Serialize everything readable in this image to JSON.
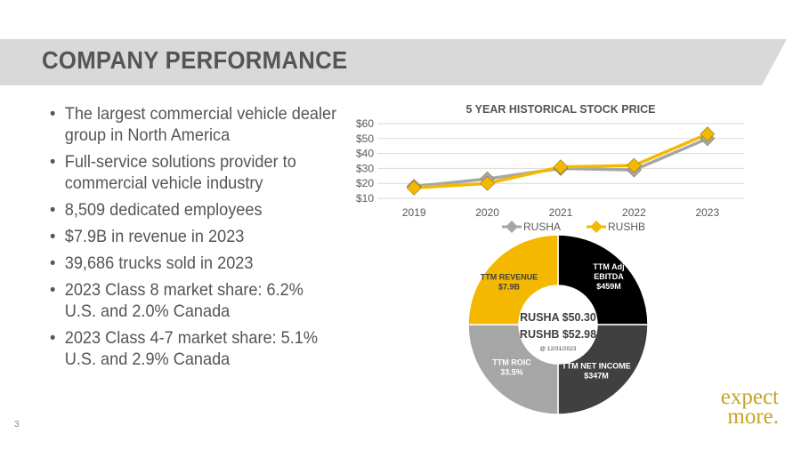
{
  "header": {
    "title": "COMPANY PERFORMANCE"
  },
  "bullets": [
    "The largest commercial vehicle dealer group in North America",
    "Full-service solutions provider to commercial vehicle industry",
    "8,509 dedicated employees",
    "$7.9B in revenue in 2023",
    "39,686 trucks sold in 2023",
    "2023 Class 8 market share: 6.2% U.S. and 2.0% Canada",
    "2023 Class 4-7 market share: 5.1% U.S. and 2.9% Canada"
  ],
  "page_number": "3",
  "logo": {
    "line1": "expect",
    "line2": "more."
  },
  "colors": {
    "gold": "#f5b800",
    "gray": "#a6a6a6",
    "black": "#000000",
    "dark": "#404040",
    "banner": "#d9d9d9",
    "logo": "#c9a227"
  },
  "chart_data": [
    {
      "type": "line",
      "title": "5 YEAR HISTORICAL STOCK PRICE",
      "categories": [
        "2019",
        "2020",
        "2021",
        "2022",
        "2023"
      ],
      "y_ticks": [
        "$10",
        "$20",
        "$30",
        "$40",
        "$50",
        "$60"
      ],
      "ylim": [
        10,
        60
      ],
      "series": [
        {
          "name": "RUSHA",
          "values": [
            18,
            23,
            30,
            29,
            50
          ],
          "color": "#a6a6a6",
          "marker": "diamond"
        },
        {
          "name": "RUSHB",
          "values": [
            17,
            20,
            31,
            32,
            53
          ],
          "color": "#f5b800",
          "marker": "diamond"
        }
      ],
      "legend": "bottom",
      "grid": true
    },
    {
      "type": "pie",
      "variant": "donut",
      "slices": [
        {
          "label_lines": [
            "TTM Adj",
            "EBITDA",
            "$459M"
          ],
          "value": 25,
          "color": "#000000",
          "text_color": "#ffffff"
        },
        {
          "label_lines": [
            "TTM NET INCOME",
            "$347M"
          ],
          "value": 25,
          "color": "#404040",
          "text_color": "#ffffff"
        },
        {
          "label_lines": [
            "TTM ROIC",
            "33.5%"
          ],
          "value": 25,
          "color": "#a6a6a6",
          "text_color": "#ffffff"
        },
        {
          "label_lines": [
            "TTM REVENUE",
            "$7.9B"
          ],
          "value": 25,
          "color": "#f5b800",
          "text_color": "#404040"
        }
      ],
      "center": {
        "line1": "RUSHA $50.30",
        "line2": "RUSHB $52.98",
        "note": "@ 12/31/2023"
      }
    }
  ]
}
